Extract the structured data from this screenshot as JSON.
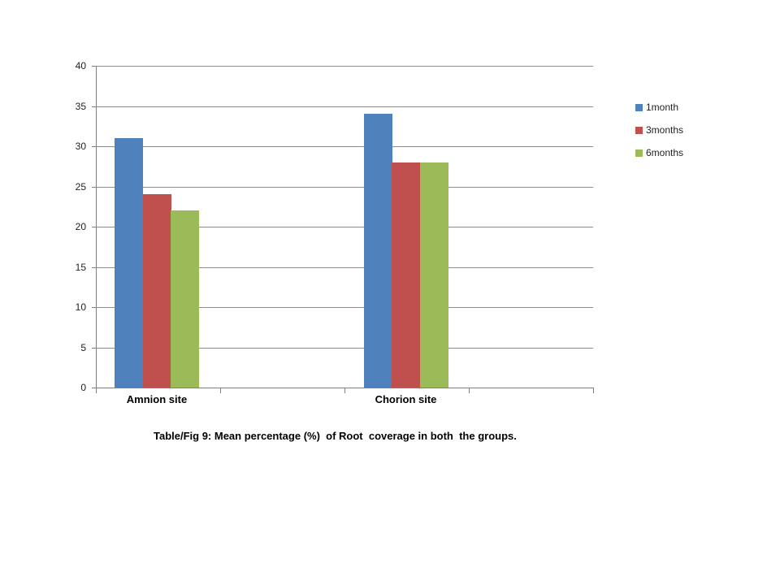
{
  "chart_data": {
    "type": "bar",
    "title": "",
    "caption": "Table/Fig 9: Mean percentage (%)  of Root  coverage in both  the groups.",
    "categories": [
      "Amnion site",
      "Chorion site"
    ],
    "series": [
      {
        "name": "1month",
        "color": "#4F81BD",
        "values": [
          31,
          34
        ]
      },
      {
        "name": "3months",
        "color": "#C0504D",
        "values": [
          24,
          28
        ]
      },
      {
        "name": "6months",
        "color": "#9BBB59",
        "values": [
          22,
          28
        ]
      }
    ],
    "ylim": [
      0,
      40
    ],
    "yticks": [
      "0",
      "5",
      "10",
      "15",
      "20",
      "25",
      "30",
      "35",
      "40"
    ],
    "grid": true,
    "legend_position": "right"
  },
  "colors": {
    "gridline": "#8C8C8C",
    "axis": "#7F7F7F",
    "tick": "#7F7F7F",
    "axis_text": "#1f1f1f",
    "background": "#ffffff"
  }
}
